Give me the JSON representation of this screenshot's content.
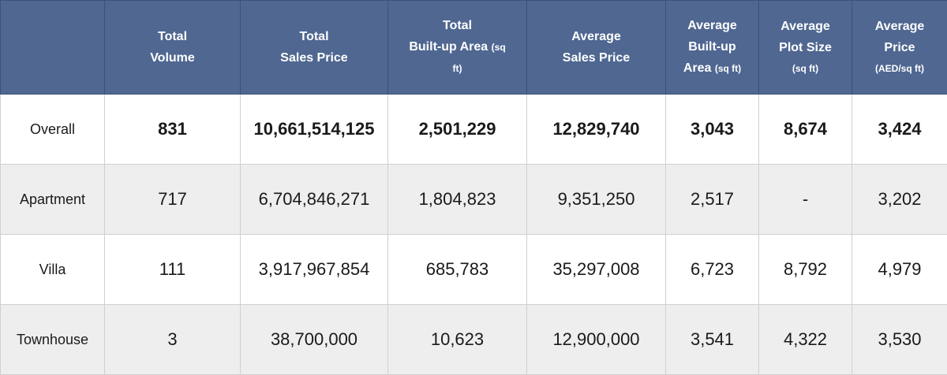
{
  "headers": {
    "corner": "",
    "total_volume": {
      "line1": "Total",
      "line2": "Volume"
    },
    "total_sales_price": {
      "line1": "Total",
      "line2": "Sales Price"
    },
    "total_built_up_area": {
      "line1": "Total",
      "line2": "Built-up Area",
      "line2_small": "(sq",
      "line3_small": "ft)"
    },
    "average_sales_price": {
      "line1": "Average",
      "line2": "Sales Price"
    },
    "average_built_up_area": {
      "line1": "Average",
      "line2": "Built-up",
      "line3": "Area",
      "line3_small": "(sq ft)"
    },
    "average_plot_size": {
      "line1": "Average",
      "line2": "Plot Size",
      "line3_small": "(sq ft)"
    },
    "average_price": {
      "line1": "Average",
      "line2": "Price",
      "line3_small": "(AED/sq ft)"
    }
  },
  "rows": [
    {
      "label": "Overall",
      "total_volume": "831",
      "total_sales_price": "10,661,514,125",
      "total_built_up_area": "2,501,229",
      "average_sales_price": "12,829,740",
      "average_built_up_area": "3,043",
      "average_plot_size": "8,674",
      "average_price": "3,424"
    },
    {
      "label": "Apartment",
      "total_volume": "717",
      "total_sales_price": "6,704,846,271",
      "total_built_up_area": "1,804,823",
      "average_sales_price": "9,351,250",
      "average_built_up_area": "2,517",
      "average_plot_size": "-",
      "average_price": "3,202"
    },
    {
      "label": "Villa",
      "total_volume": "111",
      "total_sales_price": "3,917,967,854",
      "total_built_up_area": "685,783",
      "average_sales_price": "35,297,008",
      "average_built_up_area": "6,723",
      "average_plot_size": "8,792",
      "average_price": "4,979"
    },
    {
      "label": "Townhouse",
      "total_volume": "3",
      "total_sales_price": "38,700,000",
      "total_built_up_area": "10,623",
      "average_sales_price": "12,900,000",
      "average_built_up_area": "3,541",
      "average_plot_size": "4,322",
      "average_price": "3,530"
    }
  ],
  "colors": {
    "header_bg": "#4f6791",
    "header_text": "#ffffff",
    "shaded_row": "#eeeeee"
  }
}
